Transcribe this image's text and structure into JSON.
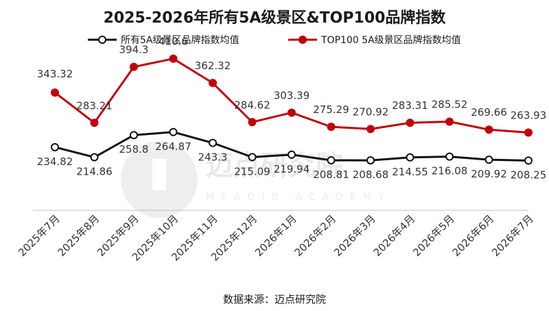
{
  "chart_data": {
    "type": "line",
    "title": "2025-2026年所有5A级景区&TOP100品牌指数",
    "categories": [
      "2025年7月",
      "2025年8月",
      "2025年9月",
      "2025年10月",
      "2025年11月",
      "2025年12月",
      "2026年1月",
      "2026年2月",
      "2026年3月",
      "2026年4月",
      "2026年5月",
      "2026年6月",
      "2026年7月"
    ],
    "series": [
      {
        "name": "所有5A级景区品牌指数均值",
        "color": "#111111",
        "marker_fill": "#ffffff",
        "values": [
          234.82,
          214.86,
          258.8,
          264.87,
          243.3,
          215.09,
          219.94,
          208.81,
          208.68,
          214.55,
          216.08,
          209.92,
          208.25
        ]
      },
      {
        "name": "TOP100 5A级景区品牌指数均值",
        "color": "#c0000b",
        "marker_fill": "#c0000b",
        "values": [
          343.32,
          283.21,
          394.3,
          410.6,
          362.32,
          284.62,
          303.39,
          275.29,
          270.92,
          283.31,
          285.52,
          269.66,
          263.93
        ]
      }
    ],
    "data_labels": {
      "series0": [
        "234.82",
        "214.86",
        "258.8",
        "264.87",
        "243.3",
        "215.09",
        "219.94",
        "208.81",
        "208.68",
        "214.55",
        "216.08",
        "209.92",
        "208.25"
      ],
      "series1": [
        "343.32",
        "283.21",
        "394.3",
        "410.6",
        "362.32",
        "284.62",
        "303.39",
        "275.29",
        "270.92",
        "283.31",
        "285.52",
        "269.66",
        "263.93"
      ]
    },
    "ylim": [
      70,
      470
    ],
    "grid": false,
    "legend_position": "top"
  },
  "watermark": {
    "text": "迈点研究院",
    "sub": "MEADIN ACADEMY"
  },
  "source": "数据来源：迈点研究院"
}
